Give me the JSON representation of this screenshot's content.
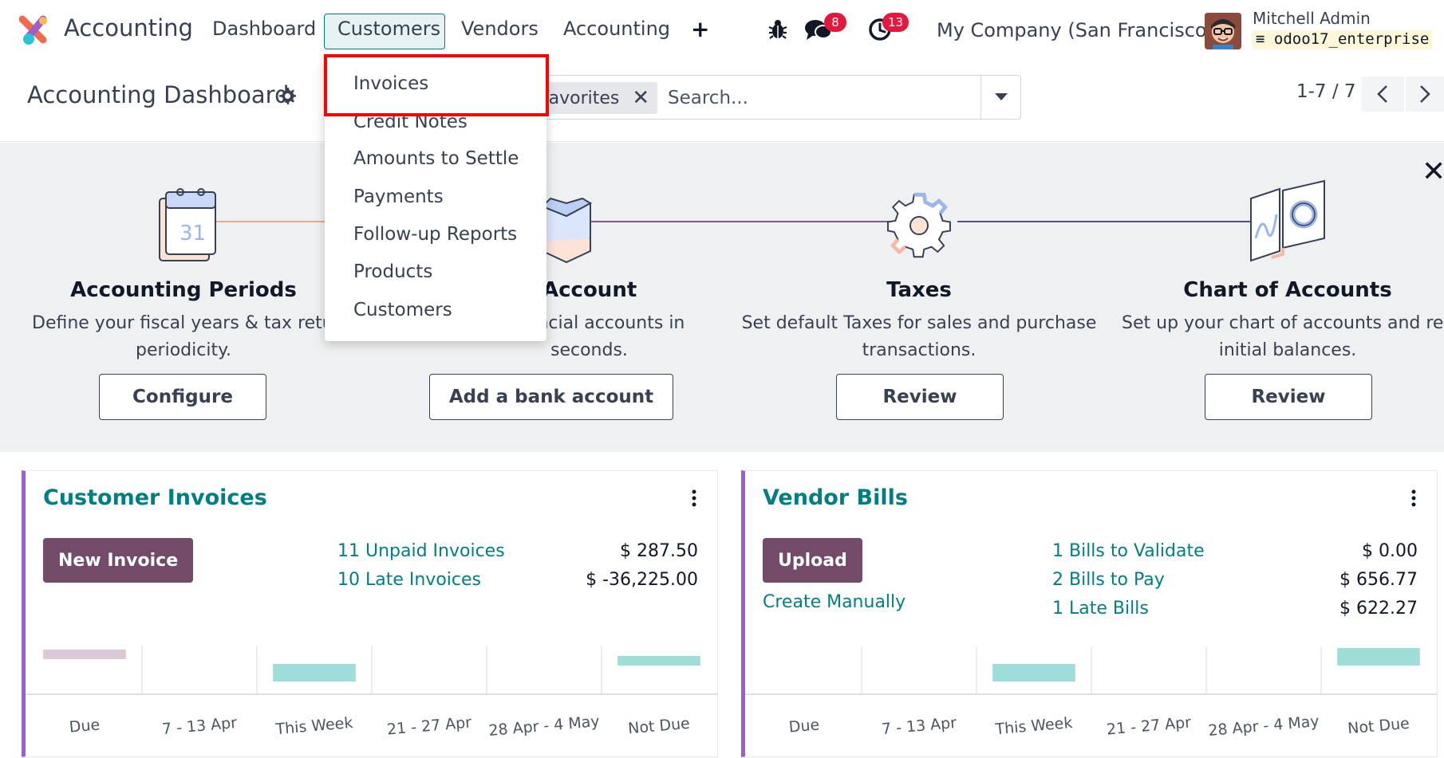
{
  "topnav": {
    "app_title": "Accounting",
    "menu": [
      {
        "label": "Dashboard"
      },
      {
        "label": "Customers"
      },
      {
        "label": "Vendors"
      },
      {
        "label": "Accounting"
      }
    ],
    "plus_label": "+",
    "messages_count": "8",
    "activities_count": "13",
    "company": "My Company (San Francisco)",
    "user_name": "Mitchell Admin",
    "db_name": "odoo17_enterprise"
  },
  "controlbar": {
    "page_title": "Accounting Dashboard",
    "facet_label": "Favorites",
    "search_placeholder": "Search...",
    "pager": "1-7 / 7"
  },
  "dropdown": {
    "items": [
      {
        "label": "Invoices"
      },
      {
        "label": "Credit Notes"
      },
      {
        "label": "Amounts to Settle"
      },
      {
        "label": "Payments"
      },
      {
        "label": "Follow-up Reports"
      },
      {
        "label": "Products"
      },
      {
        "label": "Customers"
      }
    ]
  },
  "onboarding": {
    "steps": [
      {
        "title": "Accounting Periods",
        "desc1": "Define your fiscal years & tax returns",
        "desc2": "periodicity.",
        "button": "Configure"
      },
      {
        "title": "Account",
        "desc1": "ancial accounts in",
        "desc2": "seconds.",
        "button": "Add a bank account"
      },
      {
        "title": "Taxes",
        "desc1": "Set default Taxes for sales and purchase",
        "desc2": "transactions.",
        "button": "Review"
      },
      {
        "title": "Chart of Accounts",
        "desc1": "Set up your chart of accounts and record",
        "desc2": "initial balances.",
        "button": "Review"
      }
    ],
    "calendar_day": "31"
  },
  "customer_invoices": {
    "title": "Customer Invoices",
    "button": "New Invoice",
    "links": [
      {
        "label": "11 Unpaid Invoices",
        "amount": "$ 287.50"
      },
      {
        "label": "10 Late Invoices",
        "amount": "$ -36,225.00"
      }
    ]
  },
  "vendor_bills": {
    "title": "Vendor Bills",
    "button": "Upload",
    "create_manually": "Create Manually",
    "links": [
      {
        "label": "1 Bills to Validate",
        "amount": "$ 0.00"
      },
      {
        "label": "2 Bills to Pay",
        "amount": "$ 656.77"
      },
      {
        "label": "1 Late Bills",
        "amount": "$ 622.27"
      }
    ]
  },
  "chart_data": [
    {
      "type": "bar",
      "categories": [
        "Due",
        "7 - 13 Apr",
        "This Week",
        "21 - 27 Apr",
        "28 Apr - 4 May",
        "Not Due"
      ],
      "bar_levels": [
        0.45,
        0,
        0.9,
        0,
        0,
        0.45
      ],
      "colors": [
        "#dcc8d6",
        "",
        "#9fddd8",
        "",
        "",
        "#9fddd8"
      ]
    },
    {
      "type": "bar",
      "categories": [
        "Due",
        "7 - 13 Apr",
        "This Week",
        "21 - 27 Apr",
        "28 Apr - 4 May",
        "Not Due"
      ],
      "bar_levels": [
        0,
        0,
        0.9,
        0,
        0,
        0.9
      ],
      "colors": [
        "",
        "",
        "#9fddd8",
        "",
        "",
        "#9fddd8"
      ]
    }
  ],
  "colors": {
    "brand": "#714b67",
    "teal": "#017e84",
    "badge": "#e4173c",
    "card_accent": "#a259e2"
  }
}
